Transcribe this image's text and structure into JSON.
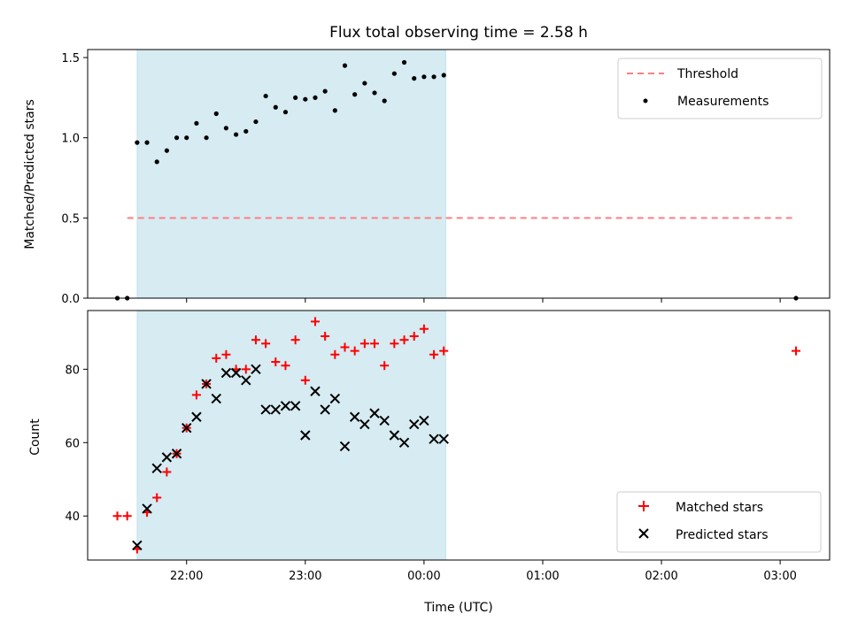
{
  "chart_data": [
    {
      "type": "scatter",
      "title": "Flux total observing time = 2.58 h",
      "ylabel": "Matched/Predicted stars",
      "xlabel": "",
      "ylim": [
        0,
        1.55
      ],
      "yticks": [
        "0.0",
        "0.5",
        "1.0",
        "1.5"
      ],
      "shaded_span": [
        "21:35",
        "00:11"
      ],
      "legend": {
        "placement": "top-right",
        "entries": [
          "Threshold",
          "Measurements"
        ]
      },
      "threshold": {
        "name": "Threshold",
        "y": 0.5,
        "x_start": "21:30",
        "x_end": "03:06",
        "color": "#ff7f7f"
      },
      "series": [
        {
          "name": "Measurements",
          "marker": "dot",
          "color": "#000000",
          "x": [
            "21:30",
            "21:35",
            "21:40",
            "21:45",
            "21:50",
            "21:55",
            "22:00",
            "22:05",
            "22:10",
            "22:15",
            "22:20",
            "22:25",
            "22:30",
            "22:35",
            "22:40",
            "22:45",
            "22:50",
            "22:55",
            "23:00",
            "23:05",
            "23:10",
            "23:15",
            "23:20",
            "23:25",
            "23:30",
            "23:35",
            "23:40",
            "23:45",
            "23:50",
            "23:55",
            "00:00",
            "00:05",
            "00:10",
            "21:25",
            "03:08"
          ],
          "y": [
            0.0,
            0.97,
            0.97,
            0.85,
            0.92,
            1.0,
            1.0,
            1.09,
            1.0,
            1.15,
            1.06,
            1.02,
            1.04,
            1.1,
            1.26,
            1.19,
            1.16,
            1.25,
            1.24,
            1.25,
            1.29,
            1.17,
            1.45,
            1.27,
            1.34,
            1.28,
            1.23,
            1.4,
            1.47,
            1.37,
            1.38,
            1.38,
            1.39,
            0.0,
            0.0
          ]
        }
      ]
    },
    {
      "type": "scatter",
      "title": "",
      "ylabel": "Count",
      "xlabel": "Time (UTC)",
      "ylim": [
        28,
        96
      ],
      "yticks": [
        "40",
        "60",
        "80"
      ],
      "xticks": [
        "22:00",
        "23:00",
        "00:00",
        "01:00",
        "02:00",
        "03:00"
      ],
      "xrange": [
        "21:10",
        "03:25"
      ],
      "shaded_span": [
        "21:35",
        "00:11"
      ],
      "legend": {
        "placement": "bottom-right",
        "entries": [
          "Matched stars",
          "Predicted stars"
        ]
      },
      "series": [
        {
          "name": "Matched stars",
          "marker": "plus",
          "color": "#ff0000",
          "x": [
            "21:25",
            "21:30",
            "21:35",
            "21:40",
            "21:45",
            "21:50",
            "21:55",
            "22:00",
            "22:05",
            "22:10",
            "22:15",
            "22:20",
            "22:25",
            "22:30",
            "22:35",
            "22:40",
            "22:45",
            "22:50",
            "22:55",
            "23:00",
            "23:05",
            "23:10",
            "23:15",
            "23:20",
            "23:25",
            "23:30",
            "23:35",
            "23:40",
            "23:45",
            "23:50",
            "23:55",
            "00:00",
            "00:05",
            "00:10",
            "03:08"
          ],
          "y": [
            40,
            40,
            31,
            41,
            45,
            52,
            57,
            64,
            73,
            76,
            83,
            84,
            80,
            80,
            88,
            87,
            82,
            81,
            88,
            77,
            93,
            89,
            84,
            86,
            85,
            87,
            87,
            81,
            87,
            88,
            89,
            91,
            84,
            85,
            85
          ]
        },
        {
          "name": "Predicted stars",
          "marker": "x",
          "color": "#000000",
          "x": [
            "21:35",
            "21:40",
            "21:45",
            "21:50",
            "21:55",
            "22:00",
            "22:05",
            "22:10",
            "22:15",
            "22:20",
            "22:25",
            "22:30",
            "22:35",
            "22:40",
            "22:45",
            "22:50",
            "22:55",
            "23:00",
            "23:05",
            "23:10",
            "23:15",
            "23:20",
            "23:25",
            "23:30",
            "23:35",
            "23:40",
            "23:45",
            "23:50",
            "23:55",
            "00:00",
            "00:05",
            "00:10"
          ],
          "y": [
            32,
            42,
            53,
            56,
            57,
            64,
            67,
            76,
            72,
            79,
            79,
            77,
            80,
            69,
            69,
            70,
            70,
            62,
            74,
            69,
            72,
            59,
            67,
            65,
            68,
            66,
            62,
            60,
            65,
            66,
            61,
            61
          ]
        }
      ]
    }
  ]
}
